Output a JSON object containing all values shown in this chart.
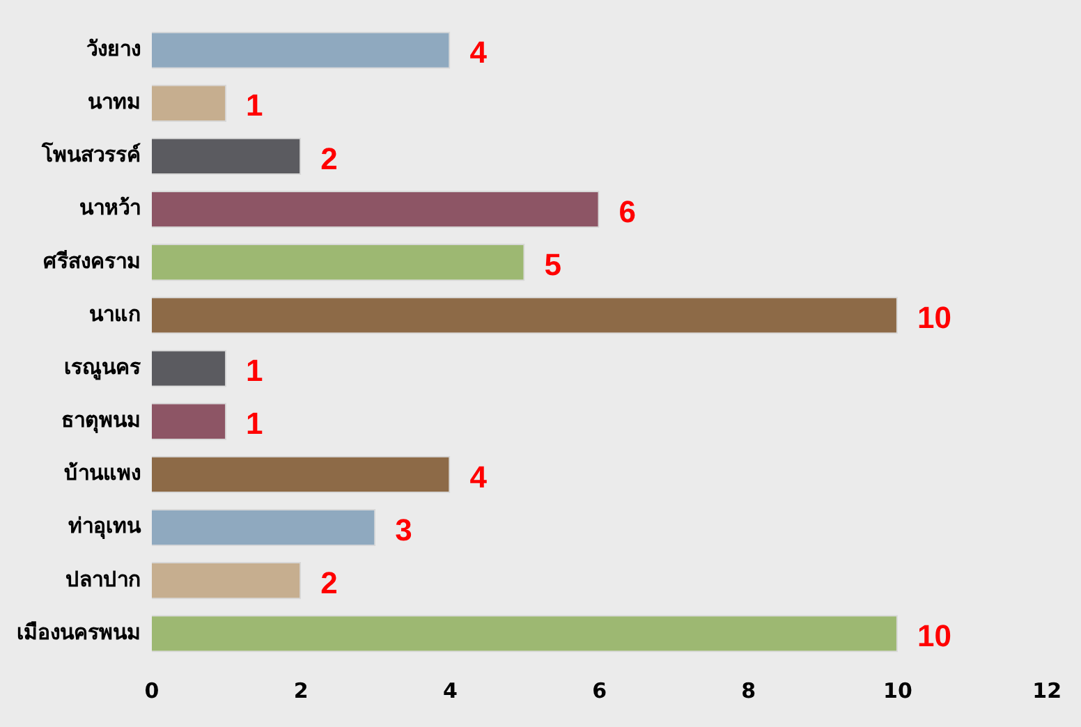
{
  "chart_data": {
    "type": "bar",
    "orientation": "horizontal",
    "categories": [
      "วังยาง",
      "นาทม",
      "โพนสวรรค์",
      "นาหว้า",
      "ศรีสงคราม",
      "นาแก",
      "เรณูนคร",
      "ธาตุพนม",
      "บ้านแพง",
      "ท่าอุเทน",
      "ปลาปาก",
      "เมืองนครพนม"
    ],
    "values": [
      4,
      1,
      2,
      6,
      5,
      10,
      1,
      1,
      4,
      3,
      2,
      10
    ],
    "colors": [
      "#8fa9bf",
      "#c6ae8f",
      "#5b5b60",
      "#8d5565",
      "#9db872",
      "#8d6a47",
      "#5b5b60",
      "#8d5565",
      "#8d6a47",
      "#8fa9bf",
      "#c6ae8f",
      "#9db872"
    ],
    "xlim": [
      0,
      12
    ],
    "xticks": [
      0,
      2,
      4,
      6,
      8,
      10,
      12
    ],
    "data_labels": true,
    "grid": false,
    "legend": false
  }
}
